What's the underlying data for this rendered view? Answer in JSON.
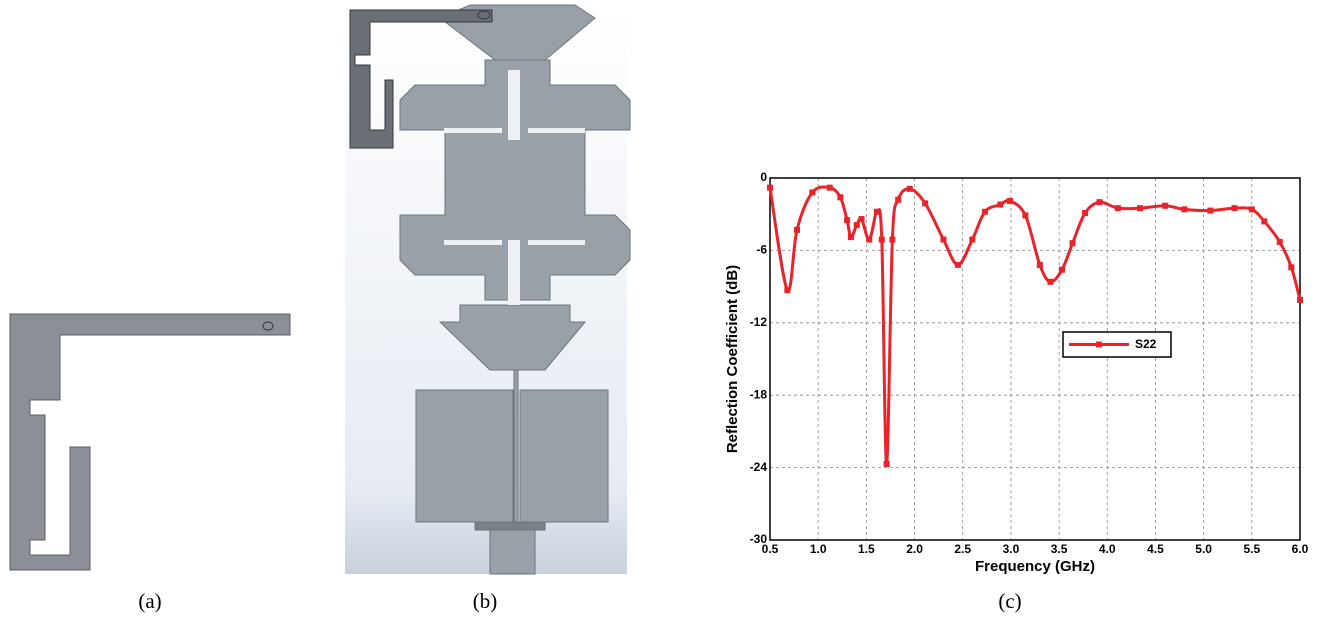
{
  "captions": [
    "(a)",
    "(b)",
    "(c)"
  ],
  "chart_data": {
    "type": "line",
    "x_label": "Frequency (GHz)",
    "y_label": "Reflection Coefficient (dB)",
    "x": [
      0.5,
      0.68,
      0.78,
      0.94,
      1.12,
      1.23,
      1.3,
      1.34,
      1.4,
      1.45,
      1.53,
      1.61,
      1.66,
      1.71,
      1.77,
      1.83,
      1.95,
      2.11,
      2.3,
      2.45,
      2.6,
      2.73,
      2.89,
      2.99,
      3.15,
      3.3,
      3.41,
      3.53,
      3.64,
      3.77,
      3.92,
      4.11,
      4.34,
      4.6,
      4.8,
      5.07,
      5.32,
      5.5,
      5.63,
      5.79,
      5.91,
      6.0
    ],
    "series": [
      {
        "name": "S22",
        "color": "#e8232a",
        "values": [
          -0.8,
          -9.3,
          -4.3,
          -1.2,
          -0.8,
          -1.6,
          -3.5,
          -4.9,
          -3.9,
          -3.4,
          -5.1,
          -2.8,
          -5.1,
          -23.7,
          -5.1,
          -1.8,
          -0.9,
          -2.1,
          -5.1,
          -7.2,
          -5.1,
          -2.8,
          -2.2,
          -1.9,
          -3.1,
          -7.2,
          -8.6,
          -7.6,
          -5.4,
          -2.9,
          -2.0,
          -2.5,
          -2.5,
          -2.3,
          -2.6,
          -2.7,
          -2.5,
          -2.6,
          -3.6,
          -5.3,
          -7.4,
          -10.1
        ]
      }
    ],
    "xlim": [
      0.5,
      6.0
    ],
    "xticks": [
      0.5,
      {
        "value": 1,
        "label": "1.0"
      },
      1.5,
      {
        "value": 2,
        "label": "2.0"
      },
      2.5,
      {
        "value": 3,
        "label": "3.0"
      },
      3.5,
      {
        "value": 4,
        "label": "4.0"
      },
      4.5,
      {
        "value": 5,
        "label": "5.0"
      },
      5.5,
      {
        "value": 6,
        "label": "6.0"
      }
    ],
    "ylim": [
      -30,
      0
    ],
    "yticks": [
      0,
      -6,
      -12,
      -18,
      -24,
      -30
    ],
    "grid": true,
    "legend": "center"
  }
}
